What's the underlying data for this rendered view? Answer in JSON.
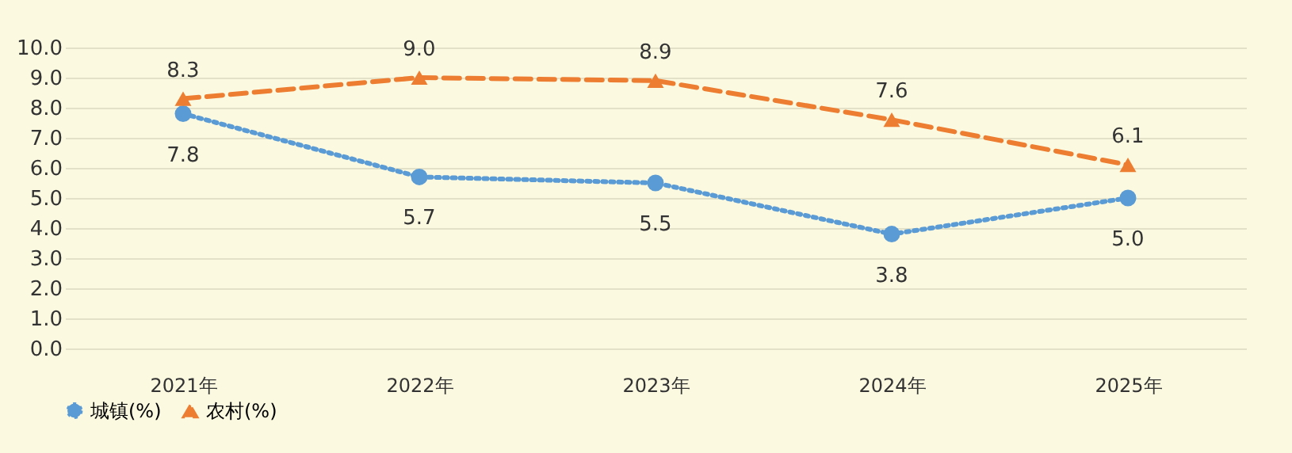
{
  "chart_data": {
    "type": "line",
    "categories": [
      "2021年",
      "2022年",
      "2023年",
      "2024年",
      "2025年"
    ],
    "series": [
      {
        "name": "城镇(%)",
        "color": "#5b9bd5",
        "values": [
          7.8,
          5.7,
          5.5,
          3.8,
          5.0
        ],
        "value_labels": [
          "7.8",
          "5.7",
          "5.5",
          "3.8",
          "5.0"
        ],
        "marker": "circle",
        "line_style": "dotted"
      },
      {
        "name": "农村(%)",
        "color": "#ed7d31",
        "values": [
          8.3,
          9.0,
          8.9,
          7.6,
          6.1
        ],
        "value_labels": [
          "8.3",
          "9.0",
          "8.9",
          "7.6",
          "6.1"
        ],
        "marker": "triangle",
        "line_style": "dashed"
      }
    ],
    "ylim": [
      0,
      10
    ],
    "yticks": [
      {
        "value": 0,
        "label": "0.0"
      },
      {
        "value": 1,
        "label": "1.0"
      },
      {
        "value": 2,
        "label": "2.0"
      },
      {
        "value": 3,
        "label": "3.0"
      },
      {
        "value": 4,
        "label": "4.0"
      },
      {
        "value": 5,
        "label": "5.0"
      },
      {
        "value": 6,
        "label": "6.0"
      },
      {
        "value": 7,
        "label": "7.0"
      },
      {
        "value": 8,
        "label": "8.0"
      },
      {
        "value": 9,
        "label": "9.0"
      },
      {
        "value": 10,
        "label": "10.0"
      }
    ],
    "grid": "y",
    "legend": "bottom"
  }
}
